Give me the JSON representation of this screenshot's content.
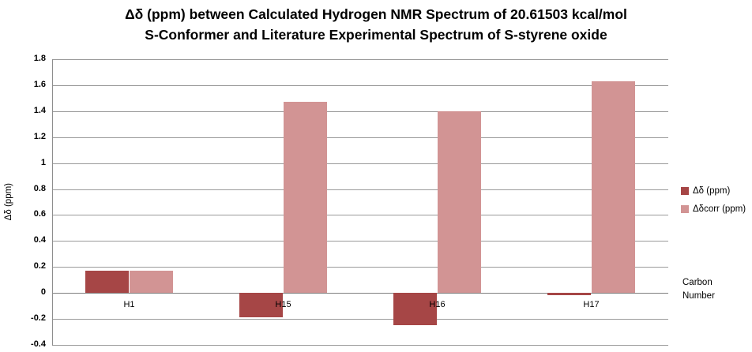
{
  "chart_data": {
    "type": "bar",
    "title": "Δδ (ppm) between Calculated Hydrogen NMR Spectrum of 20.61503 kcal/mol S-Conformer and Literature Experimental Spectrum of S-styrene oxide",
    "title_lines": [
      "Δδ (ppm) between Calculated Hydrogen NMR Spectrum of 20.61503 kcal/mol",
      "S-Conformer and Literature Experimental Spectrum of S-styrene oxide"
    ],
    "ylabel": "Δδ (ppm)",
    "xlabel": "Carbon Number",
    "categories": [
      "H1",
      "H15",
      "H16",
      "H17"
    ],
    "series": [
      {
        "name": "Δδ (ppm)",
        "color": "#A64646",
        "values": [
          0.17,
          -0.19,
          -0.25,
          -0.02
        ]
      },
      {
        "name": "Δδcorr (ppm)",
        "color": "#D29494",
        "values": [
          0.17,
          1.47,
          1.4,
          1.63
        ]
      }
    ],
    "ylim": [
      -0.4,
      1.8
    ],
    "ytick_step": 0.2,
    "yticks": [
      "1.8",
      "1.6",
      "1.4",
      "1.2",
      "1",
      "0.8",
      "0.6",
      "0.4",
      "0.2",
      "0",
      "-0.2",
      "-0.4"
    ],
    "grid": true,
    "legend_position": "right",
    "colors": {
      "gridline": "#9A9A9A",
      "axis": "#8E8E8E",
      "zero_line": "#7F7F7F",
      "text": "#000000",
      "background": "#FFFFFF"
    }
  }
}
